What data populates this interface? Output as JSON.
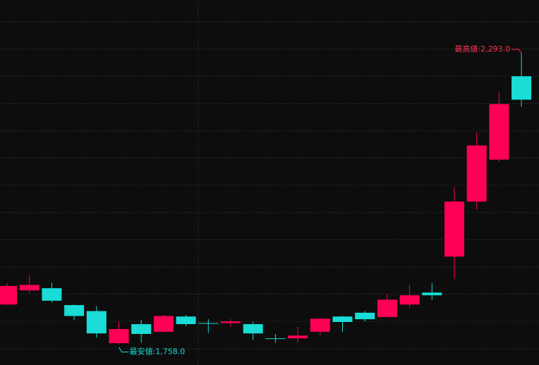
{
  "chart_data": {
    "type": "candlestick",
    "up_color": "#ff0055",
    "down_color": "#19dcd6",
    "ylim": [
      1720,
      2390
    ],
    "yticks": [
      1750,
      1800,
      1850,
      1900,
      1950,
      2000,
      2050,
      2100,
      2150,
      2200,
      2250,
      2300,
      2350
    ],
    "grid": true,
    "open": [
      1831,
      1857,
      1861,
      1830,
      1819,
      1760,
      1795,
      1781,
      1809,
      1797,
      1797,
      1795,
      1769,
      1769,
      1781,
      1809,
      1816,
      1808,
      1831,
      1853,
      1919,
      2020,
      2097,
      2250
    ],
    "high": [
      1870,
      1885,
      1871,
      1831,
      1828,
      1800,
      1803,
      1812,
      1812,
      1804,
      1804,
      1799,
      1777,
      1790,
      1806,
      1810,
      1819,
      1851,
      1867,
      1870,
      2046,
      2147,
      2221,
      2293
    ],
    "low": [
      1830,
      1852,
      1835,
      1803,
      1770,
      1758,
      1761,
      1780,
      1791,
      1779,
      1791,
      1766,
      1761,
      1761,
      1775,
      1781,
      1800,
      1808,
      1826,
      1840,
      1878,
      2005,
      2093,
      2194
    ],
    "close": [
      1865,
      1867,
      1838,
      1810,
      1778,
      1786,
      1777,
      1810,
      1795,
      1796,
      1800,
      1778,
      1768,
      1774,
      1805,
      1799,
      1804,
      1840,
      1848,
      1848,
      2020,
      2123,
      2199,
      2207
    ],
    "annotations": [
      {
        "text": "最高値:2,293.0",
        "index": 23,
        "value": 2293,
        "color": "#ff3355"
      },
      {
        "text": "最安値:1,758.0",
        "index": 5,
        "value": 1758,
        "color": "#19dcd6"
      }
    ]
  }
}
